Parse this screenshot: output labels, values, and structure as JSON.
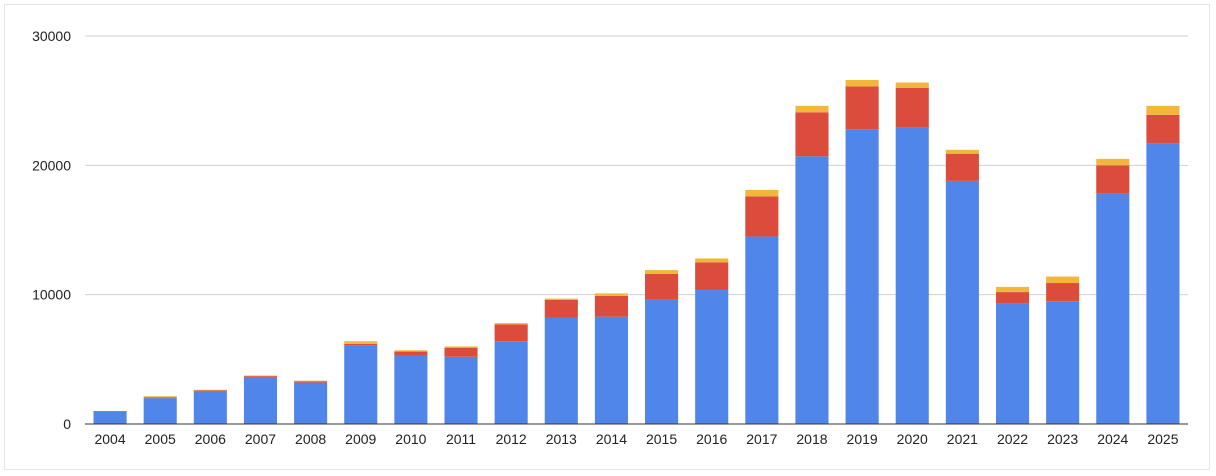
{
  "chart_data": {
    "type": "bar",
    "stacked": true,
    "categories": [
      "2004",
      "2005",
      "2006",
      "2007",
      "2008",
      "2009",
      "2010",
      "2011",
      "2012",
      "2013",
      "2014",
      "2015",
      "2016",
      "2017",
      "2018",
      "2019",
      "2020",
      "2021",
      "2022",
      "2023",
      "2024",
      "2025"
    ],
    "series": [
      {
        "color": "#5085e9",
        "values": [
          1000,
          2000,
          2500,
          3600,
          3200,
          6100,
          5300,
          5200,
          6400,
          8200,
          8300,
          9600,
          10400,
          14500,
          20700,
          22800,
          22900,
          18800,
          9300,
          9500,
          17800,
          21700
        ]
      },
      {
        "color": "#db4c3c",
        "values": [
          0,
          50,
          100,
          100,
          100,
          100,
          300,
          700,
          1300,
          1400,
          1600,
          2000,
          2100,
          3100,
          3400,
          3300,
          3100,
          2100,
          900,
          1400,
          2200,
          2200
        ]
      },
      {
        "color": "#f2b63b",
        "values": [
          0,
          100,
          50,
          50,
          50,
          200,
          100,
          100,
          100,
          100,
          200,
          300,
          300,
          500,
          500,
          500,
          400,
          300,
          400,
          500,
          500,
          700
        ]
      }
    ],
    "ylim": [
      0,
      30000
    ],
    "yticks": [
      0,
      10000,
      20000,
      30000
    ],
    "grid": true,
    "legend": "none"
  }
}
